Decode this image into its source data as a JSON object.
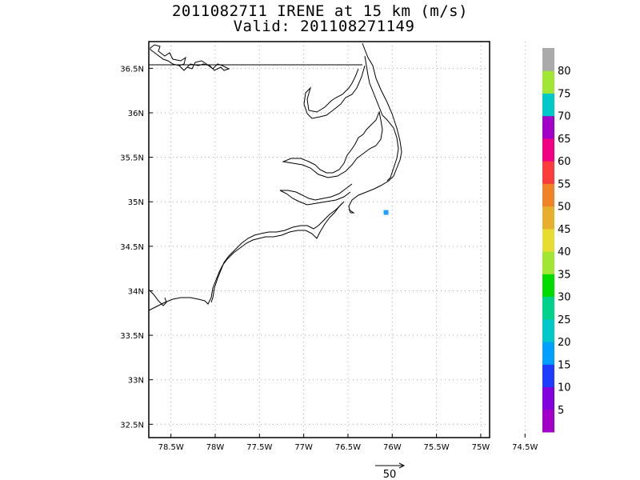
{
  "header": {
    "title_line1": "20110827I1 IRENE at 15 km (m/s)",
    "title_line2": "Valid: 201108271149"
  },
  "chart_data": {
    "type": "map",
    "title": "20110827I1 IRENE at 15 km (m/s)",
    "subtitle": "Valid: 201108271149",
    "x_ticks": [
      "78.5W",
      "78W",
      "77.5W",
      "77W",
      "76.5W",
      "76W",
      "75.5W",
      "75W",
      "74.5W"
    ],
    "y_ticks": [
      "36.5N",
      "36N",
      "35.5N",
      "35N",
      "34.5N",
      "34N",
      "33.5N",
      "33N",
      "32.5N"
    ],
    "lon_range": [
      -78.75,
      -74.9
    ],
    "lat_range": [
      32.35,
      36.8
    ],
    "grid": true,
    "data_points": [
      {
        "lon": -76.07,
        "lat": 34.88,
        "value": 20,
        "color": "#1ea0ff"
      }
    ],
    "colorbar": {
      "labels": [
        "5",
        "10",
        "15",
        "20",
        "25",
        "30",
        "35",
        "40",
        "45",
        "50",
        "55",
        "60",
        "65",
        "70",
        "75",
        "80"
      ],
      "colors": [
        "#a000c8",
        "#8200dc",
        "#1e3cff",
        "#00a0ff",
        "#00c8c8",
        "#00d28c",
        "#00dc00",
        "#a0e632",
        "#e6dc32",
        "#e6af2d",
        "#f08228",
        "#fa3c3c",
        "#f00082",
        "#a000c8",
        "#00c8c8",
        "#a0e632",
        "#aaaaaa"
      ]
    },
    "vector_scale": {
      "label": "50"
    }
  },
  "colors": {
    "coastline": "#000000",
    "grid": "#aaaaaa",
    "frame": "#000000"
  }
}
